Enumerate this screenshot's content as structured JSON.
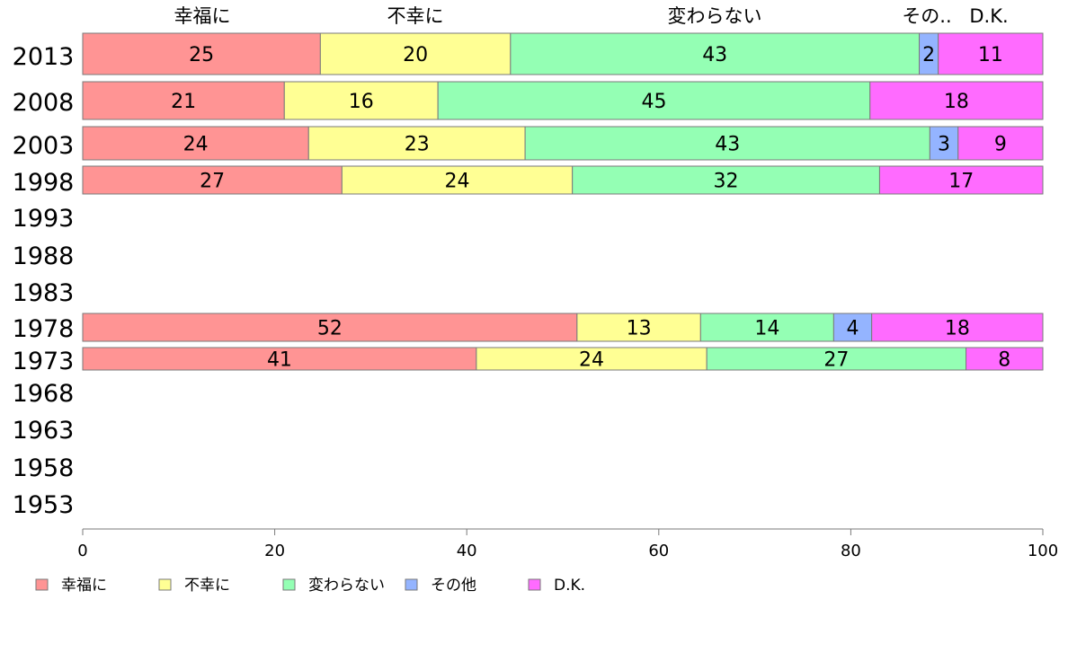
{
  "chart_data": {
    "type": "bar",
    "orientation": "horizontal",
    "stacked": true,
    "categories": [
      "2013",
      "2008",
      "2003",
      "1998",
      "1993",
      "1988",
      "1983",
      "1978",
      "1973",
      "1968",
      "1963",
      "1958",
      "1953"
    ],
    "series": [
      {
        "name": "幸福に",
        "color": "#ff9494",
        "values": [
          25,
          21,
          24,
          27,
          null,
          null,
          null,
          52,
          41,
          null,
          null,
          null,
          null
        ]
      },
      {
        "name": "不幸に",
        "color": "#ffff94",
        "values": [
          20,
          16,
          23,
          24,
          null,
          null,
          null,
          13,
          24,
          null,
          null,
          null,
          null
        ]
      },
      {
        "name": "変わらない",
        "color": "#94ffb4",
        "values": [
          43,
          45,
          43,
          32,
          null,
          null,
          null,
          14,
          27,
          null,
          null,
          null,
          null
        ]
      },
      {
        "name": "その他",
        "color": "#94b4ff",
        "values": [
          2,
          0,
          3,
          0,
          null,
          null,
          null,
          4,
          0,
          null,
          null,
          null,
          null
        ]
      },
      {
        "name": "D.K.",
        "color": "#ff6bff",
        "values": [
          11,
          18,
          9,
          17,
          null,
          null,
          null,
          18,
          8,
          null,
          null,
          null,
          null
        ]
      }
    ],
    "top_labels": [
      "幸福に",
      "不幸に",
      "変わらない",
      "その..",
      "D.K."
    ],
    "xlim": [
      0,
      100
    ],
    "xticks": [
      0,
      20,
      40,
      60,
      80,
      100
    ],
    "grid": false,
    "legend_position": "bottom"
  }
}
